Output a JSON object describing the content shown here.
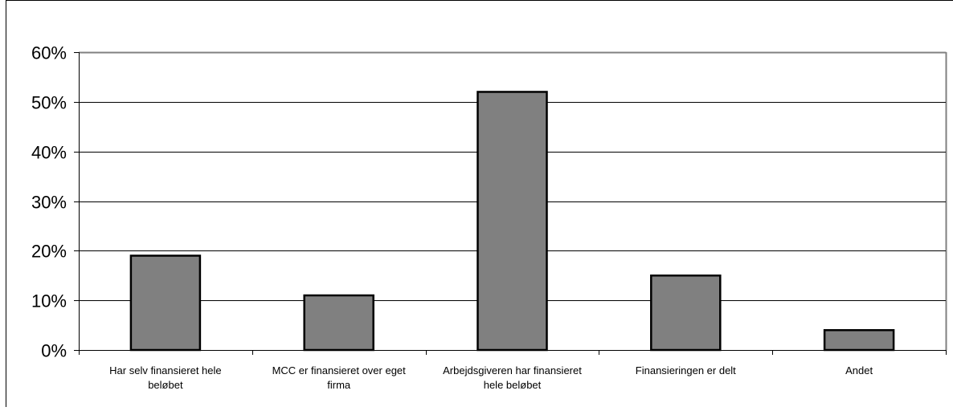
{
  "chart_data": {
    "type": "bar",
    "title": "",
    "xlabel": "",
    "ylabel": "",
    "categories": [
      [
        "Har selv finansieret hele",
        "beløbet"
      ],
      [
        "MCC er finansieret over eget",
        "firma"
      ],
      [
        "Arbejdsgiveren har finansieret",
        "hele beløbet"
      ],
      [
        "Finansieringen er delt"
      ],
      [
        "Andet"
      ]
    ],
    "values": [
      0.19,
      0.11,
      0.52,
      0.15,
      0.04
    ],
    "ylim": [
      0,
      0.6
    ],
    "yticks": [
      0,
      0.1,
      0.2,
      0.3,
      0.4,
      0.5,
      0.6
    ],
    "ytick_labels": [
      "0%",
      "10%",
      "20%",
      "30%",
      "40%",
      "50%",
      "60%"
    ],
    "grid": true,
    "legend": "none",
    "colors": {
      "bar_fill": "#808080",
      "bar_stroke": "#000000",
      "gridline": "#000000",
      "plot_border": "#808080",
      "axis": "#000000"
    }
  }
}
